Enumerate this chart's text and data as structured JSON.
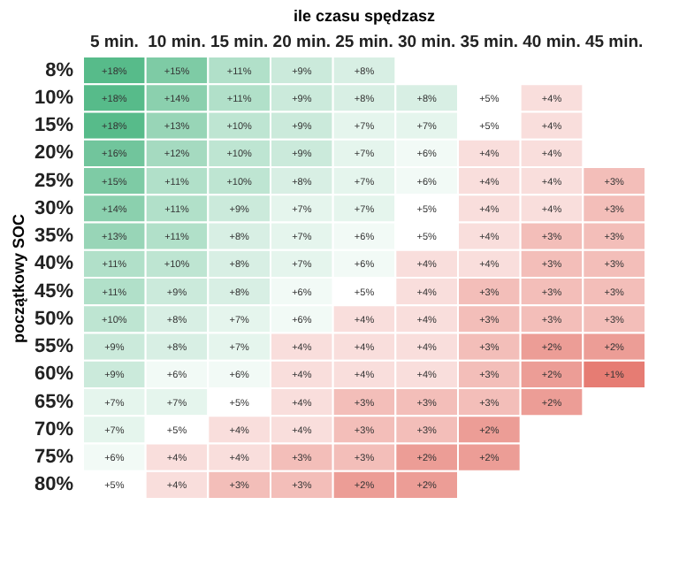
{
  "chart_data": {
    "type": "heatmap",
    "title": "ile czasu spędzasz",
    "ylabel": "początkowy SOC",
    "categories": [
      "5 min.",
      "10 min.",
      "15 min.",
      "20 min.",
      "25 min.",
      "30 min.",
      "35 min.",
      "40 min.",
      "45 min."
    ],
    "y_categories": [
      "8%",
      "10%",
      "15%",
      "20%",
      "25%",
      "30%",
      "35%",
      "40%",
      "45%",
      "50%",
      "55%",
      "60%",
      "65%",
      "70%",
      "75%",
      "80%"
    ],
    "cells": [
      [
        18,
        15,
        11,
        9,
        8,
        null,
        null,
        null,
        null
      ],
      [
        18,
        14,
        11,
        9,
        8,
        8,
        5,
        4,
        null
      ],
      [
        18,
        13,
        10,
        9,
        7,
        7,
        5,
        4,
        null
      ],
      [
        16,
        12,
        10,
        9,
        7,
        6,
        4,
        4,
        null
      ],
      [
        15,
        11,
        10,
        8,
        7,
        6,
        4,
        4,
        3
      ],
      [
        14,
        11,
        9,
        7,
        7,
        5,
        4,
        4,
        3
      ],
      [
        13,
        11,
        8,
        7,
        6,
        5,
        4,
        3,
        3
      ],
      [
        11,
        10,
        8,
        7,
        6,
        4,
        4,
        3,
        3
      ],
      [
        11,
        9,
        8,
        6,
        5,
        4,
        3,
        3,
        3
      ],
      [
        10,
        8,
        7,
        6,
        4,
        4,
        3,
        3,
        3
      ],
      [
        9,
        8,
        7,
        4,
        4,
        4,
        3,
        2,
        2
      ],
      [
        9,
        6,
        6,
        4,
        4,
        4,
        3,
        2,
        1
      ],
      [
        7,
        7,
        5,
        4,
        3,
        3,
        3,
        2,
        null
      ],
      [
        7,
        5,
        4,
        4,
        3,
        3,
        2,
        null,
        null
      ],
      [
        6,
        4,
        4,
        3,
        3,
        2,
        2,
        null,
        null
      ],
      [
        5,
        4,
        3,
        3,
        2,
        2,
        null,
        null,
        null
      ]
    ],
    "cell_labels": [
      [
        "+18%",
        "+15%",
        "+11%",
        "+9%",
        "+8%",
        null,
        null,
        null,
        null
      ],
      [
        "+18%",
        "+14%",
        "+11%",
        "+9%",
        "+8%",
        "+8%",
        "+5%",
        "+4%",
        null
      ],
      [
        "+18%",
        "+13%",
        "+10%",
        "+9%",
        "+7%",
        "+7%",
        "+5%",
        "+4%",
        null
      ],
      [
        "+16%",
        "+12%",
        "+10%",
        "+9%",
        "+7%",
        "+6%",
        "+4%",
        "+4%",
        null
      ],
      [
        "+15%",
        "+11%",
        "+10%",
        "+8%",
        "+7%",
        "+6%",
        "+4%",
        "+4%",
        "+3%"
      ],
      [
        "+14%",
        "+11%",
        "+9%",
        "+7%",
        "+7%",
        "+5%",
        "+4%",
        "+4%",
        "+3%"
      ],
      [
        "+13%",
        "+11%",
        "+8%",
        "+7%",
        "+6%",
        "+5%",
        "+4%",
        "+3%",
        "+3%"
      ],
      [
        "+11%",
        "+10%",
        "+8%",
        "+7%",
        "+6%",
        "+4%",
        "+4%",
        "+3%",
        "+3%"
      ],
      [
        "+11%",
        "+9%",
        "+8%",
        "+6%",
        "+5%",
        "+4%",
        "+3%",
        "+3%",
        "+3%"
      ],
      [
        "+10%",
        "+8%",
        "+7%",
        "+6%",
        "+4%",
        "+4%",
        "+3%",
        "+3%",
        "+3%"
      ],
      [
        "+9%",
        "+8%",
        "+7%",
        "+4%",
        "+4%",
        "+4%",
        "+3%",
        "+2%",
        "+2%"
      ],
      [
        "+9%",
        "+6%",
        "+6%",
        "+4%",
        "+4%",
        "+4%",
        "+3%",
        "+2%",
        "+1%"
      ],
      [
        "+7%",
        "+7%",
        "+5%",
        "+4%",
        "+3%",
        "+3%",
        "+3%",
        "+2%",
        null
      ],
      [
        "+7%",
        "+5%",
        "+4%",
        "+4%",
        "+3%",
        "+3%",
        "+2%",
        null,
        null
      ],
      [
        "+6%",
        "+4%",
        "+4%",
        "+3%",
        "+3%",
        "+2%",
        "+2%",
        null,
        null
      ],
      [
        "+5%",
        "+4%",
        "+3%",
        "+3%",
        "+2%",
        "+2%",
        null,
        null,
        null
      ]
    ],
    "colors": [
      "#e67c73",
      "#ffffff",
      "#57bb8a"
    ]
  }
}
